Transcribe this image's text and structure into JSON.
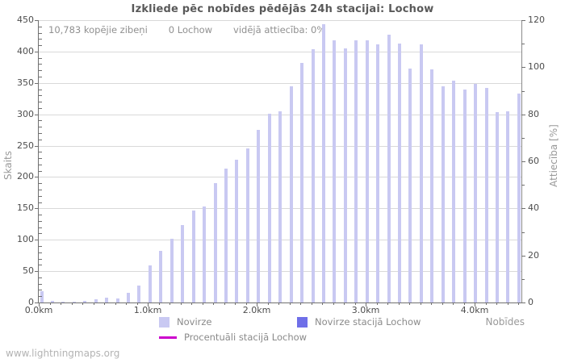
{
  "title": "Izkliede pēc nobīdes pēdējās 24h stacijai: Lochow",
  "info": {
    "total": "10,783 kopējie zibeņi",
    "station": "0 Lochow",
    "ratio": "vidējā attiecība: 0%"
  },
  "axes": {
    "left_title": "Skaits",
    "right_title": "Attiecība [%]",
    "x_title": "Nobīdes",
    "left_ticks": [
      0,
      50,
      100,
      150,
      200,
      250,
      300,
      350,
      400,
      450
    ],
    "right_ticks": [
      0,
      20,
      40,
      60,
      80,
      100,
      120
    ],
    "x_ticks": [
      "0.0km",
      "1.0km",
      "2.0km",
      "3.0km",
      "4.0km"
    ]
  },
  "legend": [
    {
      "label": "Novirze",
      "type": "square",
      "color": "#c9c9f2"
    },
    {
      "label": "Novirze stacijā Lochow",
      "type": "square",
      "color": "#6f6fe8"
    },
    {
      "label": "Procentuāli stacijā Lochow",
      "type": "line",
      "color": "#cc00cc"
    }
  ],
  "footer": "www.lightningmaps.org",
  "colors": {
    "bar": "#c9c9f2",
    "station_bar": "#6f6fe8",
    "percent_line": "#cc00cc",
    "gridline": "#d9d9d9",
    "axis": "#707070"
  },
  "chart_data": {
    "type": "bar",
    "title": "Izkliede pēc nobīdes pēdējās 24h stacijai: Lochow",
    "xlabel": "Nobīdes",
    "ylabel_left": "Skaits",
    "ylabel_right": "Attiecība [%]",
    "ylim_left": [
      0,
      450
    ],
    "ylim_right": [
      0,
      120
    ],
    "xlim_km": [
      0.0,
      4.43
    ],
    "grid": true,
    "legend_position": "bottom",
    "x_km": [
      0.0,
      0.1,
      0.2,
      0.3,
      0.4,
      0.5,
      0.6,
      0.7,
      0.8,
      0.9,
      1.0,
      1.1,
      1.2,
      1.3,
      1.4,
      1.5,
      1.6,
      1.7,
      1.8,
      1.9,
      2.0,
      2.1,
      2.2,
      2.3,
      2.4,
      2.5,
      2.6,
      2.7,
      2.8,
      2.9,
      3.0,
      3.1,
      3.2,
      3.3,
      3.4,
      3.5,
      3.6,
      3.7,
      3.8,
      3.9,
      4.0,
      4.1,
      4.2,
      4.3,
      4.4
    ],
    "series": [
      {
        "name": "Novirze",
        "axis": "left",
        "values": [
          18,
          3,
          1,
          1,
          2,
          5,
          8,
          6,
          15,
          27,
          59,
          82,
          101,
          123,
          147,
          153,
          190,
          213,
          227,
          246,
          275,
          301,
          305,
          345,
          382,
          404,
          444,
          418,
          405,
          418,
          418,
          412,
          427,
          413,
          373,
          412,
          371,
          345,
          353,
          339,
          348,
          342,
          304,
          305,
          333
        ]
      },
      {
        "name": "Novirze stacijā Lochow",
        "axis": "left",
        "values": [
          0,
          0,
          0,
          0,
          0,
          0,
          0,
          0,
          0,
          0,
          0,
          0,
          0,
          0,
          0,
          0,
          0,
          0,
          0,
          0,
          0,
          0,
          0,
          0,
          0,
          0,
          0,
          0,
          0,
          0,
          0,
          0,
          0,
          0,
          0,
          0,
          0,
          0,
          0,
          0,
          0,
          0,
          0,
          0,
          0
        ]
      },
      {
        "name": "Procentuāli stacijā Lochow",
        "axis": "right",
        "values": [
          0,
          0,
          0,
          0,
          0,
          0,
          0,
          0,
          0,
          0,
          0,
          0,
          0,
          0,
          0,
          0,
          0,
          0,
          0,
          0,
          0,
          0,
          0,
          0,
          0,
          0,
          0,
          0,
          0,
          0,
          0,
          0,
          0,
          0,
          0,
          0,
          0,
          0,
          0,
          0,
          0,
          0,
          0,
          0,
          0
        ]
      }
    ]
  }
}
